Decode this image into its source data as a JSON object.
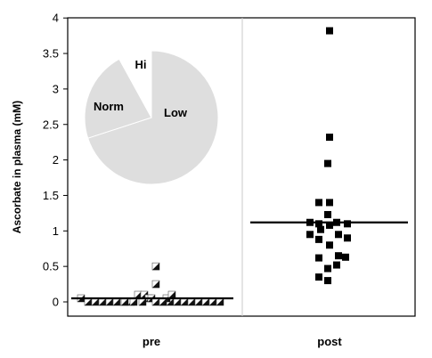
{
  "chart_data": [
    {
      "type": "scatter",
      "ylabel": "Ascorbate in plasma (mM)",
      "xlabel": "",
      "ylim": [
        0,
        4
      ],
      "yticks": [
        "0",
        "0.5",
        "1",
        "1.5",
        "2",
        "2.5",
        "3",
        "3.5",
        "4"
      ],
      "categories": [
        "pre",
        "post"
      ],
      "grid": "vertical divider between groups",
      "series": [
        {
          "category": "pre",
          "marker": "half-filled-square",
          "mean": 0.05,
          "values": [
            0.05,
            0.0,
            0.0,
            0.0,
            0.0,
            0.0,
            0.0,
            0.0,
            0.1,
            0.1,
            0.05,
            0.05,
            0.0,
            0.0,
            0.0,
            0.0,
            0.0,
            0.0,
            0.0,
            0.05,
            0.1,
            0.25,
            0.5,
            0.0,
            0.0,
            0.0,
            0.0,
            0.0,
            0.0,
            0.0
          ]
        },
        {
          "category": "post",
          "marker": "filled-square",
          "mean": 1.12,
          "values": [
            3.82,
            2.32,
            1.95,
            1.4,
            1.4,
            1.23,
            1.12,
            1.1,
            1.08,
            1.12,
            1.1,
            1.02,
            0.95,
            0.9,
            0.95,
            0.88,
            0.8,
            0.62,
            0.65,
            0.63,
            0.47,
            0.52,
            0.35,
            0.3
          ]
        }
      ]
    },
    {
      "type": "pie",
      "slices": [
        {
          "label": "Low",
          "value": 70,
          "color": "#dedede"
        },
        {
          "label": "Norm",
          "value": 22,
          "color": "#dedede"
        },
        {
          "label": "Hi",
          "value": 8,
          "color": "#ffffff"
        }
      ]
    }
  ]
}
